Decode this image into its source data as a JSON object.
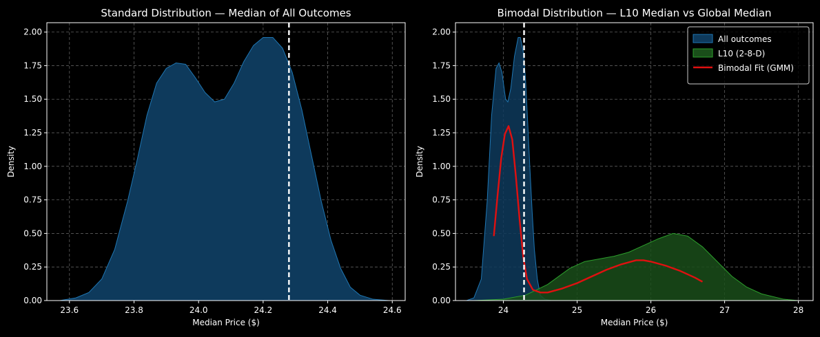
{
  "chart_data": [
    {
      "type": "area",
      "title": "Standard Distribution — Median of All Outcomes",
      "xlabel": "Median Price ($)",
      "ylabel": "Density",
      "xlim": [
        23.53,
        24.64
      ],
      "ylim": [
        0,
        2.07
      ],
      "xticks": [
        23.6,
        23.8,
        24.0,
        24.2,
        24.4,
        24.6
      ],
      "xtick_labels": [
        "23.6",
        "23.8",
        "24.0",
        "24.2",
        "24.4",
        "24.6"
      ],
      "yticks": [
        0,
        0.25,
        0.5,
        0.75,
        1.0,
        1.25,
        1.5,
        1.75,
        2.0
      ],
      "ytick_labels": [
        "0.00",
        "0.25",
        "0.50",
        "0.75",
        "1.00",
        "1.25",
        "1.50",
        "1.75",
        "2.00"
      ],
      "grid": true,
      "vline": {
        "x": 24.28,
        "color": "#ffffff",
        "style": "dashed"
      },
      "series": [
        {
          "color": "#1f77b4",
          "fill": "#0e3a5c",
          "points": [
            [
              23.57,
              0.0
            ],
            [
              23.62,
              0.02
            ],
            [
              23.66,
              0.06
            ],
            [
              23.7,
              0.16
            ],
            [
              23.74,
              0.38
            ],
            [
              23.78,
              0.74
            ],
            [
              23.81,
              1.05
            ],
            [
              23.84,
              1.38
            ],
            [
              23.87,
              1.62
            ],
            [
              23.9,
              1.73
            ],
            [
              23.93,
              1.77
            ],
            [
              23.96,
              1.76
            ],
            [
              23.99,
              1.66
            ],
            [
              24.02,
              1.55
            ],
            [
              24.05,
              1.48
            ],
            [
              24.08,
              1.5
            ],
            [
              24.11,
              1.62
            ],
            [
              24.14,
              1.78
            ],
            [
              24.17,
              1.9
            ],
            [
              24.2,
              1.96
            ],
            [
              24.23,
              1.96
            ],
            [
              24.26,
              1.88
            ],
            [
              24.29,
              1.7
            ],
            [
              24.32,
              1.42
            ],
            [
              24.35,
              1.08
            ],
            [
              24.38,
              0.74
            ],
            [
              24.41,
              0.45
            ],
            [
              24.44,
              0.24
            ],
            [
              24.47,
              0.1
            ],
            [
              24.5,
              0.04
            ],
            [
              24.54,
              0.01
            ],
            [
              24.59,
              0.0
            ]
          ]
        }
      ]
    },
    {
      "type": "area",
      "title": "Bimodal Distribution — L10 Median vs Global Median",
      "xlabel": "Median Price ($)",
      "ylabel": "Density",
      "xlim": [
        23.35,
        28.2
      ],
      "ylim": [
        0,
        2.07
      ],
      "xticks": [
        24,
        25,
        26,
        27,
        28
      ],
      "xtick_labels": [
        "24",
        "25",
        "26",
        "27",
        "28"
      ],
      "yticks": [
        0,
        0.25,
        0.5,
        0.75,
        1.0,
        1.25,
        1.5,
        1.75,
        2.0
      ],
      "ytick_labels": [
        "0.00",
        "0.25",
        "0.50",
        "0.75",
        "1.00",
        "1.25",
        "1.50",
        "1.75",
        "2.00"
      ],
      "grid": true,
      "legend_position": "top-right",
      "vline": {
        "x": 24.28,
        "color": "#ffffff",
        "style": "dashed"
      },
      "series": [
        {
          "name": "All outcomes",
          "kind": "area",
          "color": "#1f77b4",
          "fill": "#0e3a5c",
          "points": [
            [
              23.5,
              0.0
            ],
            [
              23.6,
              0.02
            ],
            [
              23.7,
              0.16
            ],
            [
              23.78,
              0.74
            ],
            [
              23.84,
              1.38
            ],
            [
              23.9,
              1.73
            ],
            [
              23.94,
              1.77
            ],
            [
              23.98,
              1.7
            ],
            [
              24.03,
              1.5
            ],
            [
              24.06,
              1.48
            ],
            [
              24.1,
              1.58
            ],
            [
              24.15,
              1.82
            ],
            [
              24.2,
              1.96
            ],
            [
              24.23,
              1.96
            ],
            [
              24.27,
              1.85
            ],
            [
              24.3,
              1.65
            ],
            [
              24.33,
              1.32
            ],
            [
              24.36,
              0.98
            ],
            [
              24.39,
              0.66
            ],
            [
              24.42,
              0.38
            ],
            [
              24.46,
              0.16
            ],
            [
              24.5,
              0.04
            ],
            [
              24.56,
              0.01
            ],
            [
              24.65,
              0.0
            ]
          ]
        },
        {
          "name": "L10 (2-8-D)",
          "kind": "area",
          "color": "#2ca02c",
          "fill": "#1a4e1a",
          "points": [
            [
              23.6,
              0.0
            ],
            [
              24.0,
              0.01
            ],
            [
              24.3,
              0.04
            ],
            [
              24.6,
              0.12
            ],
            [
              24.9,
              0.24
            ],
            [
              25.1,
              0.29
            ],
            [
              25.3,
              0.31
            ],
            [
              25.5,
              0.33
            ],
            [
              25.7,
              0.36
            ],
            [
              25.9,
              0.41
            ],
            [
              26.1,
              0.46
            ],
            [
              26.3,
              0.5
            ],
            [
              26.5,
              0.48
            ],
            [
              26.7,
              0.4
            ],
            [
              26.9,
              0.29
            ],
            [
              27.1,
              0.18
            ],
            [
              27.3,
              0.1
            ],
            [
              27.5,
              0.05
            ],
            [
              27.8,
              0.01
            ],
            [
              28.0,
              0.0
            ]
          ]
        },
        {
          "name": "Bimodal Fit (GMM)",
          "kind": "line",
          "color": "#e01010",
          "points": [
            [
              23.87,
              0.48
            ],
            [
              23.92,
              0.78
            ],
            [
              23.97,
              1.06
            ],
            [
              24.02,
              1.24
            ],
            [
              24.07,
              1.3
            ],
            [
              24.12,
              1.2
            ],
            [
              24.17,
              0.92
            ],
            [
              24.22,
              0.6
            ],
            [
              24.27,
              0.32
            ],
            [
              24.32,
              0.16
            ],
            [
              24.4,
              0.08
            ],
            [
              24.5,
              0.06
            ],
            [
              24.6,
              0.06
            ],
            [
              24.8,
              0.09
            ],
            [
              25.0,
              0.13
            ],
            [
              25.2,
              0.18
            ],
            [
              25.4,
              0.23
            ],
            [
              25.6,
              0.27
            ],
            [
              25.8,
              0.3
            ],
            [
              25.9,
              0.3
            ],
            [
              26.0,
              0.29
            ],
            [
              26.2,
              0.26
            ],
            [
              26.4,
              0.22
            ],
            [
              26.6,
              0.17
            ],
            [
              26.7,
              0.14
            ]
          ]
        }
      ]
    }
  ]
}
